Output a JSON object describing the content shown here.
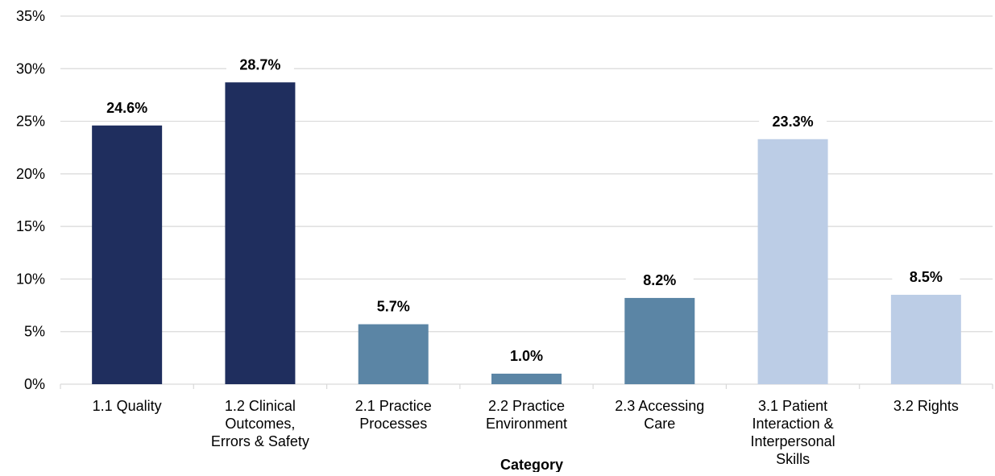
{
  "chart_data": {
    "type": "bar",
    "title": "",
    "xlabel": "Category",
    "ylabel": "",
    "ylim": [
      0,
      35
    ],
    "yticks": [
      0,
      5,
      10,
      15,
      20,
      25,
      30,
      35
    ],
    "ytick_labels": [
      "0%",
      "5%",
      "10%",
      "15%",
      "20%",
      "25%",
      "30%",
      "35%"
    ],
    "grid": true,
    "legend": "none",
    "categories": [
      [
        "1.1 Quality"
      ],
      [
        "1.2 Clinical",
        "Outcomes,",
        "Errors & Safety"
      ],
      [
        "2.1 Practice",
        "Processes"
      ],
      [
        "2.2 Practice",
        "Environment"
      ],
      [
        "2.3 Accessing",
        "Care"
      ],
      [
        "3.1 Patient",
        "Interaction &",
        "Interpersonal",
        "Skills"
      ],
      [
        "3.2 Rights"
      ]
    ],
    "values": [
      24.6,
      28.7,
      5.7,
      1.0,
      8.2,
      23.3,
      8.5
    ],
    "data_labels": [
      "24.6%",
      "28.7%",
      "5.7%",
      "1.0%",
      "8.2%",
      "23.3%",
      "8.5%"
    ],
    "bar_colors": [
      "#1f2e5e",
      "#1f2e5e",
      "#5b85a5",
      "#5b85a5",
      "#5b85a5",
      "#bccde6",
      "#bccde6"
    ],
    "grid_color": "#d9d9d9"
  }
}
